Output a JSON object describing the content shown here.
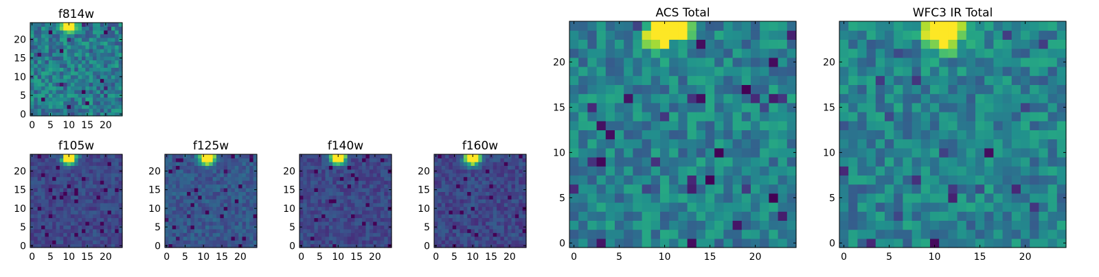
{
  "chart_data": [
    {
      "type": "heatmap",
      "title": "f814w",
      "colormap": "viridis",
      "grid_size": 25,
      "xlim": [
        0,
        24
      ],
      "ylim": [
        0,
        24
      ],
      "xticks": [
        0,
        5,
        10,
        15,
        20
      ],
      "yticks": [
        0,
        5,
        10,
        15,
        20
      ],
      "grid": false,
      "bright_source_center": [
        10,
        24
      ],
      "bright_source_sigma": 1.2,
      "background_level": 0.42,
      "noise": 0.18,
      "seed": 11
    },
    {
      "type": "heatmap",
      "title": "f105w",
      "colormap": "viridis",
      "grid_size": 25,
      "xlim": [
        0,
        24
      ],
      "ylim": [
        0,
        24
      ],
      "xticks": [
        0,
        5,
        10,
        15,
        20
      ],
      "yticks": [
        0,
        5,
        10,
        15,
        20
      ],
      "grid": false,
      "bright_source_center": [
        10,
        24
      ],
      "bright_source_sigma": 1.3,
      "background_level": 0.22,
      "noise": 0.08,
      "seed": 23
    },
    {
      "type": "heatmap",
      "title": "f125w",
      "colormap": "viridis",
      "grid_size": 25,
      "xlim": [
        0,
        24
      ],
      "ylim": [
        0,
        24
      ],
      "xticks": [
        0,
        5,
        10,
        15,
        20
      ],
      "yticks": [
        0,
        5,
        10,
        15,
        20
      ],
      "grid": false,
      "bright_source_center": [
        11,
        24
      ],
      "bright_source_sigma": 1.3,
      "background_level": 0.28,
      "noise": 0.09,
      "seed": 37
    },
    {
      "type": "heatmap",
      "title": "f140w",
      "colormap": "viridis",
      "grid_size": 25,
      "xlim": [
        0,
        24
      ],
      "ylim": [
        0,
        24
      ],
      "xticks": [
        0,
        5,
        10,
        15,
        20
      ],
      "yticks": [
        0,
        5,
        10,
        15,
        20
      ],
      "grid": false,
      "bright_source_center": [
        10,
        24
      ],
      "bright_source_sigma": 1.3,
      "background_level": 0.22,
      "noise": 0.08,
      "seed": 41
    },
    {
      "type": "heatmap",
      "title": "f160w",
      "colormap": "viridis",
      "grid_size": 25,
      "xlim": [
        0,
        24
      ],
      "ylim": [
        0,
        24
      ],
      "xticks": [
        0,
        5,
        10,
        15,
        20
      ],
      "yticks": [
        0,
        5,
        10,
        15,
        20
      ],
      "grid": false,
      "bright_source_center": [
        10,
        24
      ],
      "bright_source_sigma": 1.4,
      "background_level": 0.22,
      "noise": 0.09,
      "seed": 53
    },
    {
      "type": "heatmap",
      "title": "ACS Total",
      "colormap": "viridis",
      "grid_size": 25,
      "xlim": [
        0,
        24
      ],
      "ylim": [
        0,
        24
      ],
      "xticks": [
        0,
        5,
        10,
        15,
        20
      ],
      "yticks": [
        0,
        5,
        10,
        15,
        20
      ],
      "grid": false,
      "bright_source_center": [
        10,
        24
      ],
      "bright_source_sigma": 1.4,
      "background_level": 0.45,
      "noise": 0.16,
      "seed": 67
    },
    {
      "type": "heatmap",
      "title": "WFC3 IR Total",
      "colormap": "viridis",
      "grid_size": 25,
      "xlim": [
        0,
        24
      ],
      "ylim": [
        0,
        24
      ],
      "xticks": [
        0,
        5,
        10,
        15,
        20
      ],
      "yticks": [
        0,
        5,
        10,
        15,
        20
      ],
      "grid": false,
      "bright_source_center": [
        11,
        24
      ],
      "bright_source_sigma": 1.4,
      "background_level": 0.45,
      "noise": 0.16,
      "seed": 79
    }
  ]
}
